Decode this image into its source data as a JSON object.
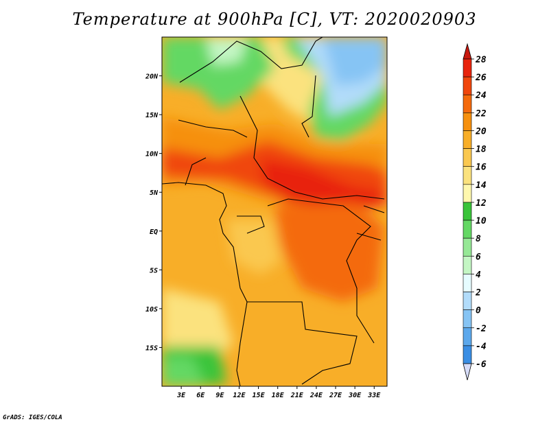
{
  "title": "Temperature at 900hPa [C], VT: 2020020903",
  "credit": "GrADS: IGES/COLA",
  "map": {
    "variable": "Temperature",
    "level": "900hPa",
    "units": "C",
    "valid_time": "2020020903",
    "region_extent": {
      "lon_min": 0,
      "lon_max": 35,
      "lat_min": -20,
      "lat_max": 25
    },
    "lat_ticks": [
      {
        "lat": 20,
        "label": "20N"
      },
      {
        "lat": 15,
        "label": "15N"
      },
      {
        "lat": 10,
        "label": "10N"
      },
      {
        "lat": 5,
        "label": "5N"
      },
      {
        "lat": 0,
        "label": "EQ"
      },
      {
        "lat": -5,
        "label": "5S"
      },
      {
        "lat": -10,
        "label": "10S"
      },
      {
        "lat": -15,
        "label": "15S"
      }
    ],
    "lon_ticks": [
      {
        "lon": 3,
        "label": "3E"
      },
      {
        "lon": 6,
        "label": "6E"
      },
      {
        "lon": 9,
        "label": "9E"
      },
      {
        "lon": 12,
        "label": "12E"
      },
      {
        "lon": 15,
        "label": "15E"
      },
      {
        "lon": 18,
        "label": "18E"
      },
      {
        "lon": 21,
        "label": "21E"
      },
      {
        "lon": 24,
        "label": "24E"
      },
      {
        "lon": 27,
        "label": "27E"
      },
      {
        "lon": 30,
        "label": "30E"
      },
      {
        "lon": 33,
        "label": "33E"
      }
    ]
  },
  "colorbar": {
    "labels": [
      "28",
      "26",
      "24",
      "22",
      "20",
      "18",
      "16",
      "14",
      "12",
      "10",
      "8",
      "6",
      "4",
      "2",
      "0",
      "-2",
      "-4",
      "-6"
    ],
    "colors_top_to_bottom": [
      "#e8240c",
      "#f0460c",
      "#f46a0c",
      "#f6900e",
      "#f8ae28",
      "#fac850",
      "#fbe27e",
      "#fff8ae",
      "#3ac43a",
      "#64d864",
      "#96e896",
      "#c4f6c4",
      "#e6fcff",
      "#b2dcfa",
      "#86c4f4",
      "#5ca8ec",
      "#3a8ee4",
      "#1e6edc",
      "#1050c0",
      "#0e369c",
      "#0a1a6c"
    ],
    "over_color": "#c8180e",
    "under_color": "#d6dcf8"
  }
}
